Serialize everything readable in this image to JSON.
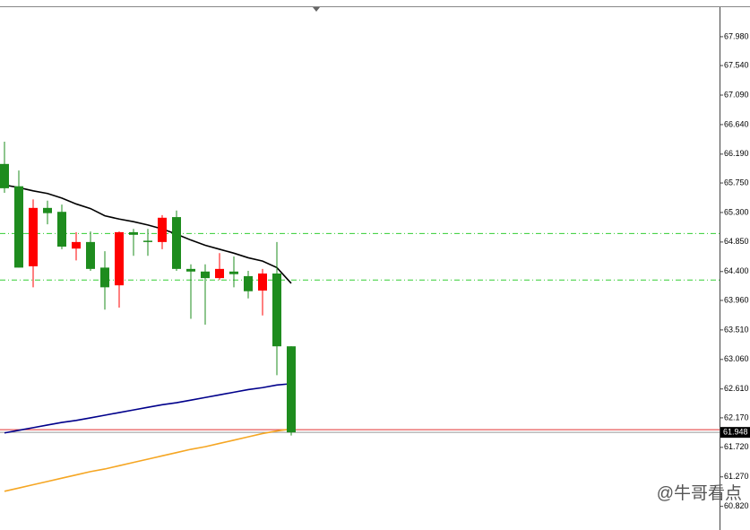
{
  "chart_data": {
    "type": "candlestick",
    "ylim": [
      60.46,
      68.43
    ],
    "yticks": [
      {
        "value": 67.98,
        "label": "67.980"
      },
      {
        "value": 67.54,
        "label": "67.540"
      },
      {
        "value": 67.09,
        "label": "67.090"
      },
      {
        "value": 66.64,
        "label": "66.640"
      },
      {
        "value": 66.19,
        "label": "66.190"
      },
      {
        "value": 65.75,
        "label": "65.750"
      },
      {
        "value": 65.3,
        "label": "65.300"
      },
      {
        "value": 64.85,
        "label": "64.850"
      },
      {
        "value": 64.4,
        "label": "64.400"
      },
      {
        "value": 63.96,
        "label": "63.960"
      },
      {
        "value": 63.51,
        "label": "63.510"
      },
      {
        "value": 63.06,
        "label": "63.060"
      },
      {
        "value": 62.61,
        "label": "62.610"
      },
      {
        "value": 62.17,
        "label": "62.170"
      },
      {
        "value": 61.72,
        "label": "61.720"
      },
      {
        "value": 61.27,
        "label": "61.270"
      },
      {
        "value": 60.82,
        "label": "60.820"
      }
    ],
    "up_color": "#ff0000",
    "down_color": "#1e8c1e",
    "open": [
      66.04,
      65.7,
      64.48,
      65.37,
      65.31,
      64.75,
      64.85,
      64.46,
      64.19,
      65.0,
      64.87,
      64.85,
      65.23,
      64.44,
      64.4,
      64.3,
      64.4,
      64.33,
      64.11,
      64.37,
      63.26
    ],
    "high": [
      66.38,
      65.94,
      65.5,
      65.48,
      65.42,
      65.0,
      65.01,
      64.71,
      65.01,
      65.05,
      65.05,
      65.26,
      65.33,
      64.51,
      64.51,
      64.68,
      64.63,
      64.41,
      64.44,
      64.85,
      63.26
    ],
    "low": [
      65.6,
      64.46,
      64.16,
      65.12,
      64.74,
      64.57,
      64.41,
      63.82,
      63.85,
      64.64,
      64.64,
      64.74,
      64.41,
      63.68,
      63.59,
      64.27,
      64.16,
      63.99,
      63.73,
      62.82,
      61.9
    ],
    "close": [
      65.67,
      64.46,
      65.37,
      65.29,
      64.78,
      64.85,
      64.44,
      64.16,
      65.0,
      64.96,
      64.85,
      65.22,
      64.44,
      64.4,
      64.3,
      64.44,
      64.36,
      64.1,
      64.37,
      63.26,
      61.948
    ],
    "moving_averages": [
      {
        "color": "#000000",
        "values": [
          65.72,
          65.68,
          65.63,
          65.59,
          65.52,
          65.43,
          65.36,
          65.25,
          65.2,
          65.16,
          65.11,
          65.05,
          64.97,
          64.88,
          64.8,
          64.74,
          64.68,
          64.61,
          64.56,
          64.46,
          64.22
        ]
      },
      {
        "color": "#00008b",
        "values": [
          61.94,
          61.98,
          62.02,
          62.06,
          62.1,
          62.13,
          62.17,
          62.21,
          62.25,
          62.29,
          62.33,
          62.37,
          62.4,
          62.44,
          62.48,
          62.52,
          62.56,
          62.6,
          62.63,
          62.67,
          62.69
        ]
      },
      {
        "color": "#f5a623",
        "values": [
          61.05,
          61.1,
          61.15,
          61.2,
          61.25,
          61.3,
          61.35,
          61.39,
          61.44,
          61.49,
          61.54,
          61.59,
          61.64,
          61.69,
          61.73,
          61.78,
          61.83,
          61.88,
          61.93,
          61.97,
          62.0
        ]
      }
    ],
    "levels": [
      {
        "value": 64.98,
        "color": "#32cd32",
        "dash": true
      },
      {
        "value": 64.27,
        "color": "#32cd32",
        "dash": true
      },
      {
        "value": 61.99,
        "color": "#e03030",
        "dash": false
      }
    ],
    "current_price": {
      "value": 61.948,
      "label": "61.948"
    },
    "watermark": "@牛哥看点"
  }
}
